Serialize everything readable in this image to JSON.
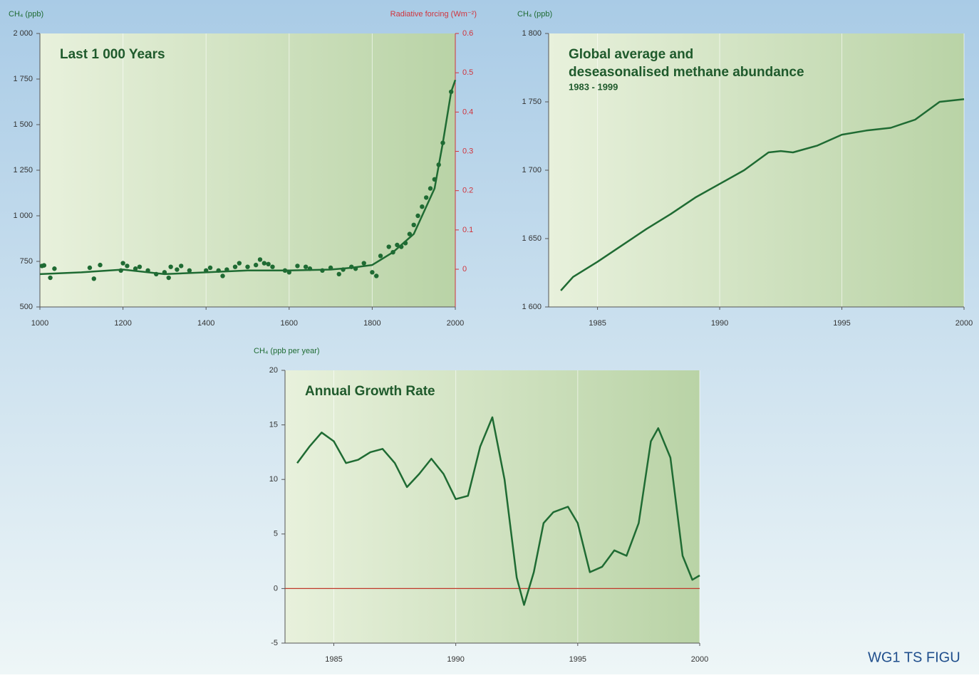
{
  "chart_data": [
    {
      "type": "line",
      "title": [
        "Last 1 000 Years"
      ],
      "y_label": "CH₄ (ppb)",
      "y2_label": "Radiative forcing (Wm⁻²)",
      "xlim": [
        1000,
        2000
      ],
      "xticks": [
        1000,
        1200,
        1400,
        1600,
        1800,
        2000
      ],
      "ylim": [
        500,
        2000
      ],
      "yticks": [
        500,
        750,
        {
          "value": 1000,
          "label": "1 000"
        },
        {
          "value": 1250,
          "label": "1 250"
        },
        {
          "value": 1500,
          "label": "1 500"
        },
        {
          "value": 1750,
          "label": "1 750"
        },
        {
          "value": 2000,
          "label": "2 000"
        }
      ],
      "y2lim": [
        -0.096,
        0.6
      ],
      "y2ticks": [
        0,
        0.1,
        0.2,
        0.3,
        0.4,
        0.5,
        0.6
      ],
      "y2color": "#d0343c",
      "grid": true,
      "series": [
        {
          "style": "markers",
          "color": "#1f6b33",
          "x": [
            1005,
            1010,
            1025,
            1035,
            1120,
            1130,
            1145,
            1195,
            1200,
            1210,
            1230,
            1240,
            1260,
            1280,
            1300,
            1310,
            1315,
            1330,
            1340,
            1360,
            1400,
            1410,
            1430,
            1440,
            1450,
            1470,
            1480,
            1500,
            1520,
            1530,
            1540,
            1550,
            1560,
            1590,
            1600,
            1620,
            1640,
            1650,
            1680,
            1700,
            1720,
            1730,
            1750,
            1760,
            1780,
            1800,
            1810,
            1820,
            1840,
            1850,
            1860,
            1870,
            1880,
            1890,
            1900,
            1910,
            1920,
            1930,
            1940,
            1950,
            1960,
            1970,
            1990
          ],
          "values": [
            725,
            728,
            660,
            710,
            715,
            655,
            730,
            700,
            740,
            725,
            710,
            720,
            700,
            680,
            690,
            660,
            720,
            705,
            725,
            700,
            700,
            715,
            700,
            670,
            705,
            720,
            740,
            720,
            730,
            760,
            740,
            735,
            720,
            700,
            690,
            725,
            720,
            710,
            700,
            715,
            680,
            705,
            720,
            710,
            740,
            690,
            670,
            780,
            830,
            800,
            840,
            830,
            850,
            900,
            950,
            1000,
            1050,
            1100,
            1150,
            1200,
            1280,
            1400,
            1680
          ]
        },
        {
          "style": "line",
          "color": "#1f6b33",
          "x": [
            1000,
            1100,
            1200,
            1300,
            1400,
            1500,
            1600,
            1700,
            1750,
            1800,
            1850,
            1900,
            1950,
            1970,
            1990,
            2000
          ],
          "values": [
            680,
            690,
            705,
            680,
            690,
            700,
            700,
            705,
            715,
            730,
            800,
            900,
            1150,
            1400,
            1680,
            1745
          ]
        }
      ]
    },
    {
      "type": "line",
      "title": [
        "Global average and",
        "deseasonalised methane abundance"
      ],
      "subtitle": "1983 - 1999",
      "y_label": "CH₄ (ppb)",
      "xlim": [
        1983,
        2000
      ],
      "xticks": [
        1985,
        1990,
        1995,
        2000
      ],
      "ylim": [
        1600,
        1800
      ],
      "yticks": [
        {
          "value": 1600,
          "label": "1 600"
        },
        {
          "value": 1650,
          "label": "1 650"
        },
        {
          "value": 1700,
          "label": "1 700"
        },
        {
          "value": 1750,
          "label": "1 750"
        },
        {
          "value": 1800,
          "label": "1 800"
        }
      ],
      "grid": true,
      "series": [
        {
          "style": "line",
          "color": "#1f6b33",
          "x": [
            1983.5,
            1984,
            1985,
            1986,
            1987,
            1988,
            1989,
            1990,
            1991,
            1992,
            1992.5,
            1993,
            1994,
            1995,
            1996,
            1997,
            1998,
            1999,
            2000
          ],
          "values": [
            1612,
            1622,
            1633,
            1645,
            1657,
            1668,
            1680,
            1690,
            1700,
            1713,
            1714,
            1713,
            1718,
            1726,
            1729,
            1731,
            1737,
            1750,
            1752
          ]
        }
      ]
    },
    {
      "type": "line",
      "title": [
        "Annual Growth Rate"
      ],
      "y_label": "CH₄ (ppb per year)",
      "xlim": [
        1983,
        2000
      ],
      "xticks": [
        1985,
        1990,
        1995,
        2000
      ],
      "ylim": [
        -5,
        20
      ],
      "yticks": [
        -5,
        0,
        5,
        10,
        15,
        20
      ],
      "grid": true,
      "hline": 0,
      "hline_color": "#c0392b",
      "series": [
        {
          "style": "line",
          "color": "#1f6b33",
          "x": [
            1983.5,
            1984,
            1984.5,
            1985,
            1985.5,
            1986,
            1986.5,
            1987,
            1987.5,
            1988,
            1988.5,
            1989,
            1989.5,
            1990,
            1990.5,
            1991,
            1991.5,
            1992,
            1992.5,
            1992.8,
            1993.2,
            1993.6,
            1994,
            1994.6,
            1995,
            1995.5,
            1996,
            1996.5,
            1997,
            1997.5,
            1998,
            1998.3,
            1998.8,
            1999.3,
            1999.7,
            2000
          ],
          "values": [
            11.5,
            13,
            14.3,
            13.5,
            11.5,
            11.8,
            12.5,
            12.8,
            11.5,
            9.3,
            10.5,
            11.9,
            10.5,
            8.2,
            8.5,
            13,
            15.7,
            10,
            1,
            -1.5,
            1.5,
            6,
            7,
            7.5,
            6,
            1.5,
            2,
            3.5,
            3,
            6,
            13.5,
            14.7,
            12,
            3,
            0.8,
            1.2
          ]
        }
      ]
    }
  ],
  "footer": "WG1 TS FIGU"
}
